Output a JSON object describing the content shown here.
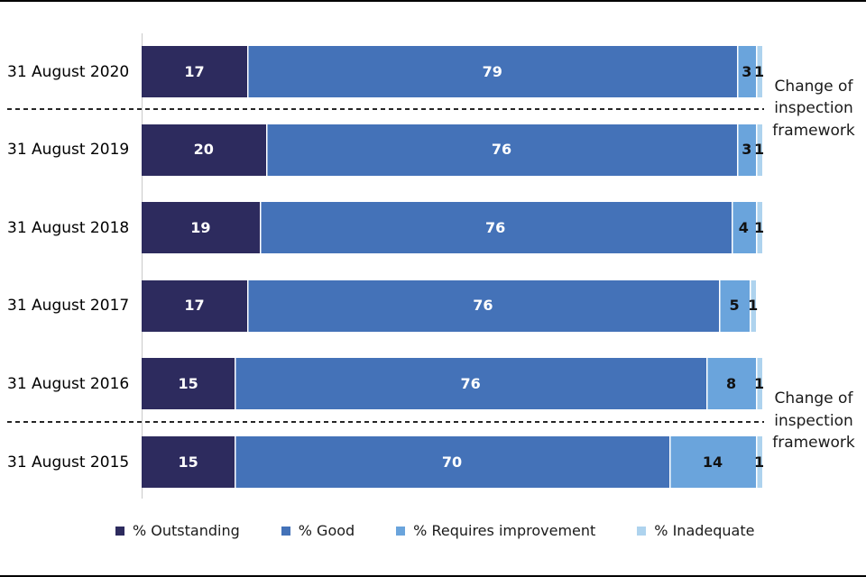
{
  "chart_data": {
    "type": "bar",
    "variant": "horizontal-stacked",
    "title": "",
    "xlabel": "",
    "ylabel": "",
    "xlim": [
      0,
      100
    ],
    "grid": false,
    "legend_position": "bottom",
    "categories": [
      "31 August 2020",
      "31 August 2019",
      "31 August 2018",
      "31 August 2017",
      "31 August 2016",
      "31 August 2015"
    ],
    "series": [
      {
        "name": "% Outstanding",
        "color": "#2d2b5e",
        "label_color": "#ffffff",
        "values": [
          17,
          20,
          19,
          17,
          15,
          15
        ]
      },
      {
        "name": "% Good",
        "color": "#4472b8",
        "label_color": "#ffffff",
        "values": [
          79,
          76,
          76,
          76,
          76,
          70
        ]
      },
      {
        "name": "% Requires improvement",
        "color": "#6aa4dc",
        "label_color": "#111111",
        "values": [
          3,
          3,
          4,
          5,
          8,
          14
        ]
      },
      {
        "name": "% Inadequate",
        "color": "#aed3ee",
        "label_color": "#111111",
        "values": [
          1,
          1,
          1,
          1,
          1,
          1
        ]
      }
    ],
    "annotations": [
      {
        "lines": [
          "Change of",
          "inspection",
          "framework"
        ],
        "gap_after_index": 0,
        "between": [
          "31 August 2020",
          "31 August 2019"
        ]
      },
      {
        "lines": [
          "Change of",
          "inspection",
          "framework"
        ],
        "gap_after_index": 4,
        "between": [
          "31 August 2016",
          "31 August 2015"
        ]
      }
    ]
  },
  "colors": {
    "background": "#ffffff",
    "page_border": "#000000",
    "axis_line": "#c9c9c9",
    "dashed_line": "#262626",
    "category_text": "#000000"
  }
}
